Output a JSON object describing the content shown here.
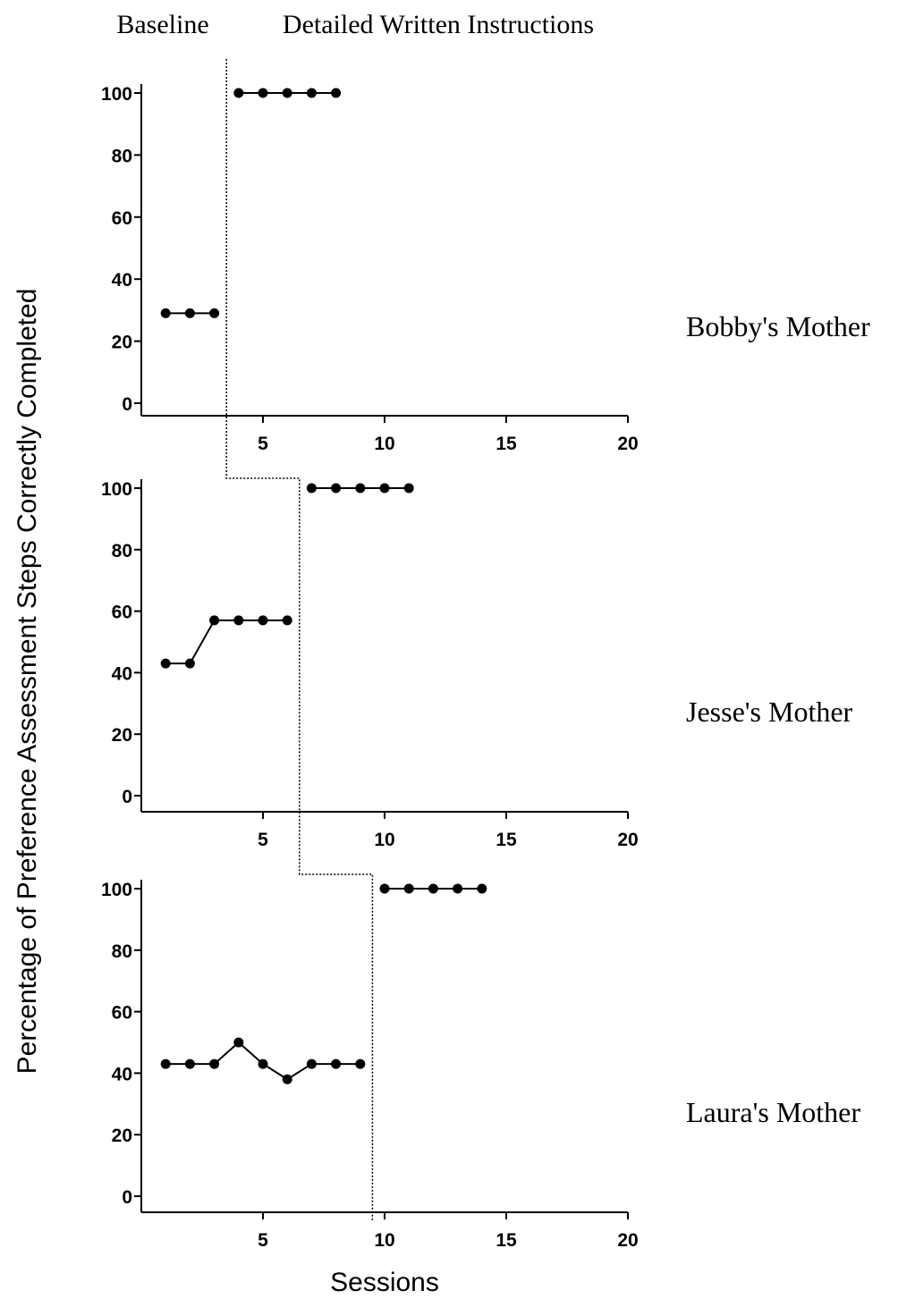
{
  "phase_labels": {
    "baseline": "Baseline",
    "intervention": "Detailed Written Instructions"
  },
  "xlabel": "Sessions",
  "ylabel": "Percentage of Preference Assessment Steps Correctly Completed",
  "colors": {
    "line": "#000000",
    "point": "#000000",
    "phase_line": "#000000"
  },
  "chart_data": [
    {
      "type": "line",
      "participant": "Bobby's Mother",
      "xlim": [
        0,
        20
      ],
      "ylim": [
        0,
        100
      ],
      "xticks": [
        5,
        10,
        15,
        20
      ],
      "yticks": [
        0,
        20,
        40,
        60,
        80,
        100
      ],
      "phase_change_after_session": 3.5,
      "baseline": {
        "x": [
          1,
          2,
          3
        ],
        "y": [
          29,
          29,
          29
        ]
      },
      "intervention": {
        "x": [
          4,
          5,
          6,
          7,
          8
        ],
        "y": [
          100,
          100,
          100,
          100,
          100
        ]
      }
    },
    {
      "type": "line",
      "participant": "Jesse's Mother",
      "xlim": [
        0,
        20
      ],
      "ylim": [
        0,
        100
      ],
      "xticks": [
        5,
        10,
        15,
        20
      ],
      "yticks": [
        0,
        20,
        40,
        60,
        80,
        100
      ],
      "phase_change_after_session": 6.5,
      "baseline": {
        "x": [
          1,
          2,
          3,
          4,
          5,
          6
        ],
        "y": [
          43,
          43,
          57,
          57,
          57,
          57
        ]
      },
      "intervention": {
        "x": [
          7,
          8,
          9,
          10,
          11
        ],
        "y": [
          100,
          100,
          100,
          100,
          100
        ]
      }
    },
    {
      "type": "line",
      "participant": "Laura's Mother",
      "xlim": [
        0,
        20
      ],
      "ylim": [
        0,
        100
      ],
      "xticks": [
        5,
        10,
        15,
        20
      ],
      "yticks": [
        0,
        20,
        40,
        60,
        80,
        100
      ],
      "phase_change_after_session": 9.5,
      "baseline": {
        "x": [
          1,
          2,
          3,
          4,
          5,
          6,
          7,
          8,
          9
        ],
        "y": [
          43,
          43,
          43,
          50,
          43,
          38,
          43,
          43,
          43
        ]
      },
      "intervention": {
        "x": [
          10,
          11,
          12,
          13,
          14
        ],
        "y": [
          100,
          100,
          100,
          100,
          100
        ]
      }
    }
  ]
}
